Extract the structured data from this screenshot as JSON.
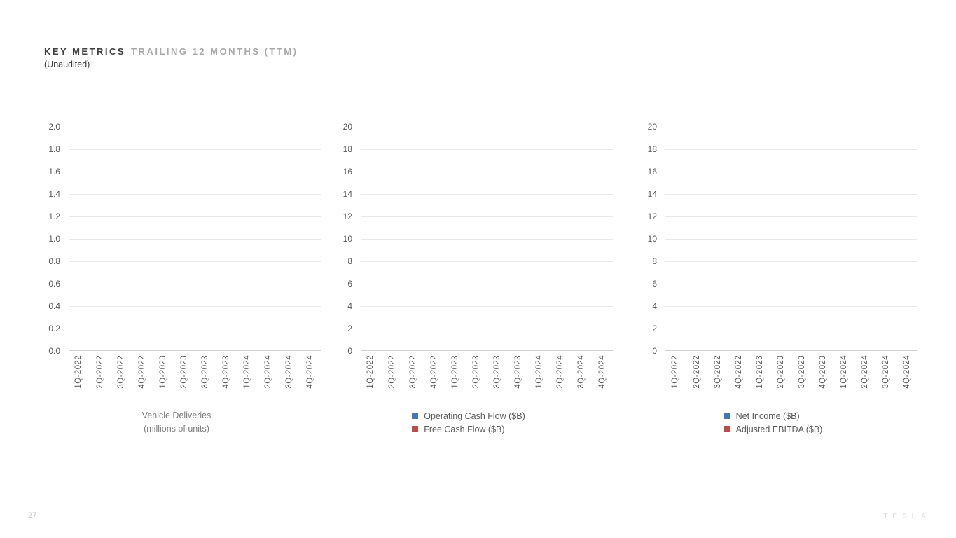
{
  "page": {
    "title_primary": "KEY METRICS",
    "title_secondary": "TRAILING 12 MONTHS (TTM)",
    "subtitle": "(Unaudited)",
    "page_number": "27",
    "watermark": "TESLA"
  },
  "colors": {
    "series_blue": "#4076b4",
    "series_red": "#be4b48",
    "gridline": "#e9e9e9",
    "axis_line": "#cfcfcf",
    "tick_text": "#595959",
    "caption_text": "#7f7f7f",
    "title_dark": "#3f3f3f",
    "title_gray": "#a9a9a9"
  },
  "chart_data": [
    {
      "type": "bar",
      "title": "Vehicle Deliveries (millions of units)",
      "caption_lines": [
        "Vehicle Deliveries",
        "(millions of units)"
      ],
      "legend_visible": false,
      "categories": [
        "1Q-2022",
        "2Q-2022",
        "3Q-2022",
        "4Q-2022",
        "1Q-2023",
        "2Q-2023",
        "3Q-2023",
        "4Q-2023",
        "1Q-2024",
        "2Q-2024",
        "3Q-2024",
        "4Q-2024"
      ],
      "series": [
        {
          "name": "Vehicle Deliveries (millions of units)",
          "color": "#4076b4",
          "values": []
        }
      ],
      "values_note": "axes and gridlines rendered with no data bars visible",
      "ylim": [
        0.0,
        2.0
      ],
      "ytick_step": 0.2,
      "ytick_labels": [
        "2.0",
        "1.8",
        "1.6",
        "1.4",
        "1.2",
        "1.0",
        "0.8",
        "0.6",
        "0.4",
        "0.2",
        "0.0"
      ],
      "grid": true,
      "legend_position": "bottom"
    },
    {
      "type": "bar",
      "title": "Operating Cash Flow vs Free Cash Flow",
      "caption_lines": [],
      "legend_visible": true,
      "categories": [
        "1Q-2022",
        "2Q-2022",
        "3Q-2022",
        "4Q-2022",
        "1Q-2023",
        "2Q-2023",
        "3Q-2023",
        "4Q-2023",
        "1Q-2024",
        "2Q-2024",
        "3Q-2024",
        "4Q-2024"
      ],
      "series": [
        {
          "name": "Operating Cash Flow ($B)",
          "color": "#4076b4",
          "values": []
        },
        {
          "name": "Free Cash Flow ($B)",
          "color": "#be4b48",
          "values": []
        }
      ],
      "values_note": "axes and gridlines rendered with no data bars visible",
      "ylim": [
        0,
        20
      ],
      "ytick_step": 2,
      "ytick_labels": [
        "20",
        "18",
        "16",
        "14",
        "12",
        "10",
        "8",
        "6",
        "4",
        "2",
        "0"
      ],
      "grid": true,
      "legend_position": "bottom"
    },
    {
      "type": "bar",
      "title": "Net Income vs Adjusted EBITDA",
      "caption_lines": [],
      "legend_visible": true,
      "categories": [
        "1Q-2022",
        "2Q-2022",
        "3Q-2022",
        "4Q-2022",
        "1Q-2023",
        "2Q-2023",
        "3Q-2023",
        "4Q-2023",
        "1Q-2024",
        "2Q-2024",
        "3Q-2024",
        "4Q-2024"
      ],
      "series": [
        {
          "name": "Net Income ($B)",
          "color": "#4076b4",
          "values": []
        },
        {
          "name": "Adjusted EBITDA ($B)",
          "color": "#be4b48",
          "values": []
        }
      ],
      "values_note": "axes and gridlines rendered with no data bars visible",
      "ylim": [
        0,
        20
      ],
      "ytick_step": 2,
      "ytick_labels": [
        "20",
        "18",
        "16",
        "14",
        "12",
        "10",
        "8",
        "6",
        "4",
        "2",
        "0"
      ],
      "grid": true,
      "legend_position": "bottom"
    }
  ]
}
